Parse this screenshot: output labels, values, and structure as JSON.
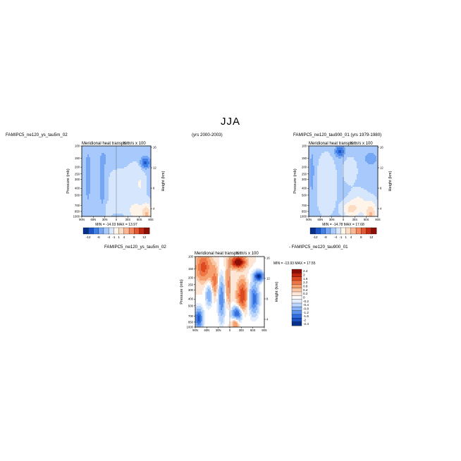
{
  "figure": {
    "main_title": "JJA",
    "header_left": "FAMIPC5_ne120_ys_tau5m_02",
    "header_center": "(yrs 2000-2003)",
    "header_right": "FAMIPC5_ne120_tau900_01 (yrs 1979-1980)",
    "diff_label_left": "FAMIPC5_ne120_ys_tau5m_02",
    "diff_label_right": "- FAMIPC5_ne120_tau900_01"
  },
  "colors": {
    "main_scale": [
      "#08308b",
      "#1f57c8",
      "#3f7fe8",
      "#75a6f4",
      "#a7c9fb",
      "#d5e6fd",
      "#fff4ea",
      "#fddcc4",
      "#f9b691",
      "#f38a5f",
      "#e45933",
      "#c12b13",
      "#8b0f05"
    ],
    "diff_scale": [
      "#08308b",
      "#1c4fc0",
      "#346fe0",
      "#5b93ef",
      "#8ab5f7",
      "#b9d5fc",
      "#e2eefe",
      "#ffffff",
      "#fde6d6",
      "#fbc6a3",
      "#f6a070",
      "#ee7646",
      "#dd4a22",
      "#bf240e",
      "#8b0f05"
    ]
  },
  "chart_data": [
    {
      "type": "heatmap",
      "panel": "top-left",
      "title": "Meridional heat transport",
      "units": "K m/s x 100",
      "ylabel": "Pressure (mb)",
      "y2label": "Height (km)",
      "y_ticks": [
        "100",
        "150",
        "200",
        "250",
        "300",
        "400",
        "500",
        "700",
        "850",
        "1000"
      ],
      "y2_ticks": [
        "16",
        "12",
        "8",
        "4"
      ],
      "x_ticks": [
        "90N",
        "60N",
        "30N",
        "0",
        "30S",
        "60S",
        "90S"
      ],
      "min_max_text": "MIN = -14.03   MAX =  13.97",
      "min": -14.03,
      "max": 13.97,
      "colorbar": {
        "labels": [
          "-12",
          "-8",
          "-4",
          "-1",
          "1",
          "4",
          "8",
          "12"
        ],
        "levels": [
          -12,
          -8,
          -4,
          -1,
          1,
          4,
          8,
          12
        ]
      }
    },
    {
      "type": "heatmap",
      "panel": "top-right",
      "title": "Meridional heat transport",
      "units": "K m/s x 100",
      "ylabel": "Pressure (mb)",
      "y2label": "Height (km)",
      "y_ticks": [
        "100",
        "150",
        "200",
        "250",
        "300",
        "400",
        "500",
        "700",
        "850",
        "1000"
      ],
      "y2_ticks": [
        "16",
        "12",
        "8",
        "4"
      ],
      "x_ticks": [
        "90N",
        "60N",
        "30N",
        "0",
        "30S",
        "60S",
        "90S"
      ],
      "min_max_text": "MIN = -14.78   MAX =  17.68",
      "min": -14.78,
      "max": 17.68,
      "colorbar": {
        "labels": [
          "-12",
          "-8",
          "-4",
          "-1",
          "1",
          "4",
          "8",
          "12"
        ],
        "levels": [
          -12,
          -8,
          -4,
          -1,
          1,
          4,
          8,
          12
        ]
      }
    },
    {
      "type": "heatmap",
      "panel": "bottom-difference",
      "title": "Meridional heat transport",
      "units": "K m/s x 100",
      "ylabel": "Pressure (mb)",
      "y2label": "Height (km)",
      "y_ticks": [
        "100",
        "150",
        "200",
        "250",
        "300",
        "400",
        "500",
        "700",
        "850",
        "1000"
      ],
      "y2_ticks": [
        "16",
        "12",
        "8",
        "4"
      ],
      "x_ticks": [
        "90N",
        "60N",
        "30N",
        "0",
        "30S",
        "60S",
        "90S"
      ],
      "min_max_text": "MIN = -13.93   MAX =  17.55",
      "min": -13.93,
      "max": 17.55,
      "colorbar": {
        "labels": [
          "2.4",
          "2",
          "1.6",
          "1.2",
          "0.8",
          "0.4",
          "0.2",
          "0",
          "-0.2",
          "-0.4",
          "-0.8",
          "-1.2",
          "-1.6",
          "-2",
          "-2.4"
        ],
        "levels": [
          2.4,
          2,
          1.6,
          1.2,
          0.8,
          0.4,
          0.2,
          0,
          -0.2,
          -0.4,
          -0.8,
          -1.2,
          -1.6,
          -2,
          -2.4
        ]
      }
    }
  ]
}
